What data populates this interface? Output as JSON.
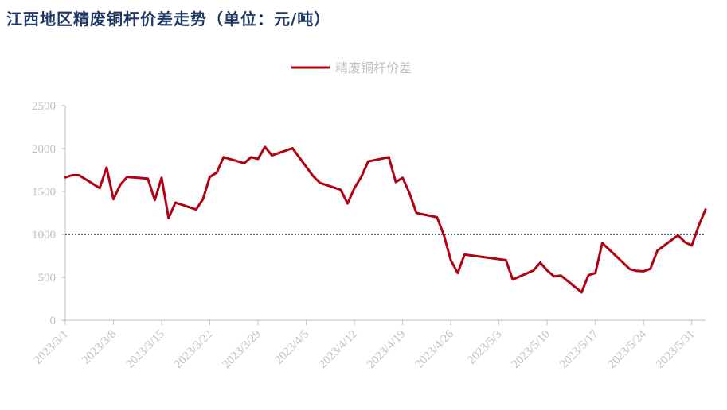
{
  "title": "江西地区精废铜杆价差走势（单位：元/吨）",
  "chart_data": {
    "type": "line",
    "title": "江西地区精废铜杆价差走势（单位：元/吨）",
    "xlabel": "",
    "ylabel": "",
    "ylim": [
      0,
      2500
    ],
    "yticks": [
      0,
      500,
      1000,
      1500,
      2000,
      2500
    ],
    "xticks": [
      "2023/3/1",
      "2023/3/8",
      "2023/3/15",
      "2023/3/22",
      "2023/3/29",
      "2023/4/5",
      "2023/4/12",
      "2023/4/19",
      "2023/4/26",
      "2023/5/3",
      "2023/5/10",
      "2023/5/17",
      "2023/5/24",
      "2023/5/31"
    ],
    "x_start": "2023/3/1",
    "x_end": "2023/6/2",
    "reference_line": {
      "value": 1000,
      "style": "dotted",
      "color": "#1f3864"
    },
    "legend_position": "top-center",
    "grid": false,
    "colors": {
      "series": "#b30012",
      "axis": "#bfbfbf",
      "title": "#1f3864"
    },
    "series": [
      {
        "name": "精废铜杆价差",
        "points": [
          [
            "2023/3/1",
            1665
          ],
          [
            "2023/3/2",
            1690
          ],
          [
            "2023/3/3",
            1690
          ],
          [
            "2023/3/6",
            1540
          ],
          [
            "2023/3/7",
            1780
          ],
          [
            "2023/3/8",
            1410
          ],
          [
            "2023/3/9",
            1580
          ],
          [
            "2023/3/10",
            1670
          ],
          [
            "2023/3/13",
            1650
          ],
          [
            "2023/3/14",
            1400
          ],
          [
            "2023/3/15",
            1660
          ],
          [
            "2023/3/16",
            1190
          ],
          [
            "2023/3/17",
            1370
          ],
          [
            "2023/3/20",
            1290
          ],
          [
            "2023/3/21",
            1410
          ],
          [
            "2023/3/22",
            1670
          ],
          [
            "2023/3/23",
            1720
          ],
          [
            "2023/3/24",
            1900
          ],
          [
            "2023/3/27",
            1830
          ],
          [
            "2023/3/28",
            1900
          ],
          [
            "2023/3/29",
            1880
          ],
          [
            "2023/3/30",
            2020
          ],
          [
            "2023/3/31",
            1920
          ],
          [
            "2023/4/3",
            2005
          ],
          [
            "2023/4/6",
            1680
          ],
          [
            "2023/4/7",
            1600
          ],
          [
            "2023/4/10",
            1520
          ],
          [
            "2023/4/11",
            1360
          ],
          [
            "2023/4/12",
            1540
          ],
          [
            "2023/4/13",
            1670
          ],
          [
            "2023/4/14",
            1850
          ],
          [
            "2023/4/17",
            1900
          ],
          [
            "2023/4/18",
            1610
          ],
          [
            "2023/4/19",
            1660
          ],
          [
            "2023/4/20",
            1480
          ],
          [
            "2023/4/21",
            1250
          ],
          [
            "2023/4/24",
            1200
          ],
          [
            "2023/4/25",
            990
          ],
          [
            "2023/4/26",
            700
          ],
          [
            "2023/4/27",
            550
          ],
          [
            "2023/4/28",
            765
          ],
          [
            "2023/5/4",
            700
          ],
          [
            "2023/5/5",
            475
          ],
          [
            "2023/5/8",
            580
          ],
          [
            "2023/5/9",
            670
          ],
          [
            "2023/5/10",
            580
          ],
          [
            "2023/5/11",
            510
          ],
          [
            "2023/5/12",
            520
          ],
          [
            "2023/5/15",
            325
          ],
          [
            "2023/5/16",
            525
          ],
          [
            "2023/5/17",
            550
          ],
          [
            "2023/5/18",
            900
          ],
          [
            "2023/5/22",
            595
          ],
          [
            "2023/5/23",
            575
          ],
          [
            "2023/5/24",
            570
          ],
          [
            "2023/5/25",
            600
          ],
          [
            "2023/5/26",
            810
          ],
          [
            "2023/5/29",
            990
          ],
          [
            "2023/5/30",
            910
          ],
          [
            "2023/5/31",
            870
          ],
          [
            "2023/6/1",
            1100
          ],
          [
            "2023/6/2",
            1290
          ]
        ]
      }
    ]
  }
}
